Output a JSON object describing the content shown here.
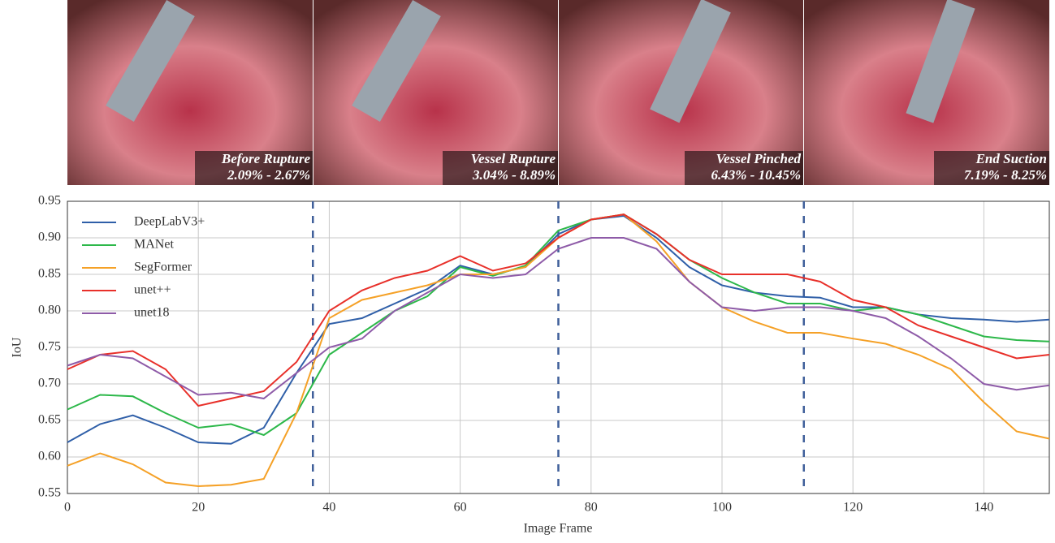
{
  "panels": [
    {
      "label": "Before Rupture",
      "range": "2.09% - 2.67%"
    },
    {
      "label": "Vessel Rupture",
      "range": "3.04% - 8.89%"
    },
    {
      "label": "Vessel Pinched",
      "range": "6.43% - 10.45%"
    },
    {
      "label": "End Suction",
      "range": "7.19% - 8.25%"
    }
  ],
  "chart_data": {
    "type": "line",
    "xlabel": "Image Frame",
    "ylabel": "IoU",
    "x": [
      0,
      5,
      10,
      15,
      20,
      25,
      30,
      35,
      40,
      45,
      50,
      55,
      60,
      65,
      70,
      75,
      80,
      85,
      90,
      95,
      100,
      105,
      110,
      115,
      120,
      125,
      130,
      135,
      140,
      145,
      150
    ],
    "series": [
      {
        "name": "DeepLabV3+",
        "color": "#2f5fa8",
        "values": [
          0.62,
          0.645,
          0.657,
          0.64,
          0.62,
          0.618,
          0.64,
          0.715,
          0.782,
          0.79,
          0.81,
          0.83,
          0.862,
          0.85,
          0.86,
          0.905,
          0.925,
          0.93,
          0.9,
          0.86,
          0.835,
          0.825,
          0.82,
          0.818,
          0.805,
          0.805,
          0.795,
          0.79,
          0.788,
          0.785,
          0.788
        ]
      },
      {
        "name": "MANet",
        "color": "#2db84a",
        "values": [
          0.665,
          0.685,
          0.683,
          0.66,
          0.64,
          0.645,
          0.63,
          0.66,
          0.74,
          0.77,
          0.8,
          0.82,
          0.86,
          0.848,
          0.862,
          0.91,
          0.925,
          0.932,
          0.905,
          0.87,
          0.845,
          0.825,
          0.81,
          0.81,
          0.8,
          0.805,
          0.795,
          0.78,
          0.765,
          0.76,
          0.758
        ]
      },
      {
        "name": "SegFormer",
        "color": "#f5a127",
        "values": [
          0.588,
          0.605,
          0.59,
          0.565,
          0.56,
          0.562,
          0.57,
          0.66,
          0.79,
          0.815,
          0.825,
          0.835,
          0.85,
          0.85,
          0.86,
          0.9,
          0.925,
          0.932,
          0.895,
          0.84,
          0.805,
          0.785,
          0.77,
          0.77,
          0.762,
          0.755,
          0.74,
          0.72,
          0.675,
          0.635,
          0.625
        ]
      },
      {
        "name": "unet++",
        "color": "#e8302a",
        "values": [
          0.72,
          0.74,
          0.745,
          0.72,
          0.67,
          0.68,
          0.69,
          0.73,
          0.8,
          0.828,
          0.845,
          0.855,
          0.875,
          0.855,
          0.865,
          0.9,
          0.925,
          0.932,
          0.905,
          0.87,
          0.85,
          0.85,
          0.85,
          0.84,
          0.815,
          0.805,
          0.78,
          0.765,
          0.75,
          0.735,
          0.74
        ]
      },
      {
        "name": "unet18",
        "color": "#8e5ba8",
        "values": [
          0.725,
          0.74,
          0.735,
          0.71,
          0.685,
          0.688,
          0.68,
          0.715,
          0.75,
          0.762,
          0.8,
          0.825,
          0.85,
          0.845,
          0.85,
          0.885,
          0.9,
          0.9,
          0.885,
          0.84,
          0.805,
          0.8,
          0.805,
          0.805,
          0.8,
          0.79,
          0.765,
          0.735,
          0.7,
          0.692,
          0.698
        ]
      }
    ],
    "vlines": [
      37.5,
      75,
      112.5
    ],
    "xlim": [
      0,
      150
    ],
    "xticks": [
      0,
      20,
      40,
      60,
      80,
      100,
      120,
      140
    ],
    "ylim": [
      0.55,
      0.95
    ],
    "yticks": [
      0.55,
      {
        "value": 0.6,
        "label": "0.60"
      },
      0.65,
      {
        "value": 0.7,
        "label": "0.70"
      },
      0.75,
      {
        "value": 0.8,
        "label": "0.80"
      },
      0.85,
      {
        "value": 0.9,
        "label": "0.90"
      },
      0.95
    ],
    "grid": true,
    "legend": "upper left"
  }
}
